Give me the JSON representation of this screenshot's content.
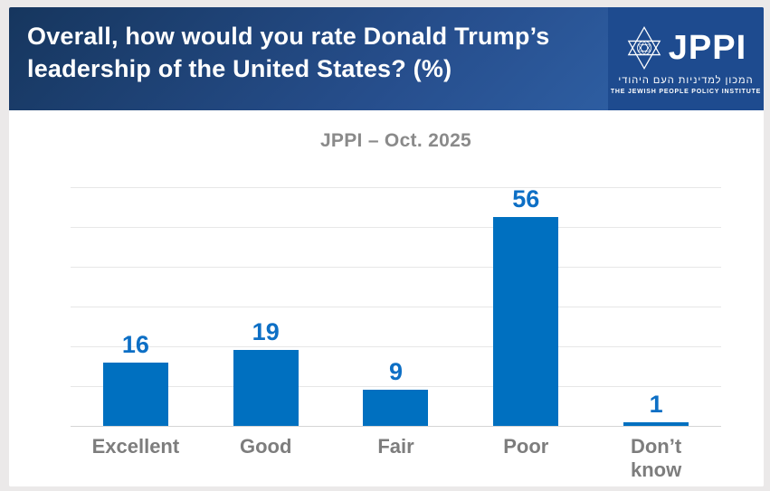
{
  "header": {
    "title_line1": "Overall, how would you rate Donald Trump’s",
    "title_line2": "leadership of the United States? (%)"
  },
  "logo": {
    "name": "JPPI",
    "hebrew": "המכון למדיניות העם היהודי",
    "english": "THE JEWISH PEOPLE POLICY INSTITUTE"
  },
  "chart_data": {
    "type": "bar",
    "title": "JPPI – Oct. 2025",
    "categories": [
      "Excellent",
      "Good",
      "Fair",
      "Poor",
      "Don’t know"
    ],
    "values": [
      16,
      19,
      9,
      56,
      1
    ],
    "xlabel": "",
    "ylabel": "",
    "ylim": [
      0,
      60
    ],
    "gridline_step": 10,
    "grid": true,
    "legend": "none",
    "bar_color": "#0070c0",
    "value_label_color": "#0d6fc5",
    "category_label_color": "#7d7d7d",
    "title_color": "#8a8a8a"
  }
}
